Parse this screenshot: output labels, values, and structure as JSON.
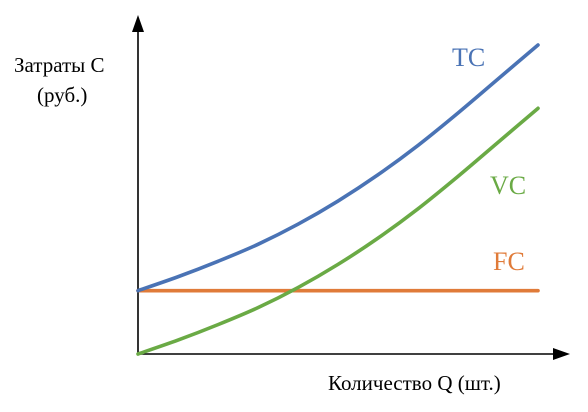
{
  "chart_data": {
    "type": "line",
    "ylabel_line1": "Затраты C",
    "ylabel_line2": "(руб.)",
    "xlabel": "Количество Q (шт.)",
    "xlim": [
      0,
      10
    ],
    "ylim": [
      0,
      10
    ],
    "grid": false,
    "legend": "none",
    "series": [
      {
        "name": "TC",
        "color": "#4a73b5",
        "x": [
          0,
          1,
          2,
          3,
          4,
          5,
          6,
          7,
          8,
          9,
          10
        ],
        "y": [
          2.05,
          2.5,
          3.0,
          3.55,
          4.2,
          4.95,
          5.8,
          6.75,
          7.8,
          8.9,
          10.0
        ]
      },
      {
        "name": "VC",
        "color": "#6aaa45",
        "x": [
          0,
          1,
          2,
          3,
          4,
          5,
          6,
          7,
          8,
          9,
          10
        ],
        "y": [
          0.0,
          0.45,
          0.95,
          1.5,
          2.15,
          2.9,
          3.75,
          4.7,
          5.75,
          6.85,
          7.95
        ]
      },
      {
        "name": "FC",
        "color": "#e07b39",
        "x": [
          0,
          10
        ],
        "y": [
          2.05,
          2.05
        ]
      }
    ]
  }
}
